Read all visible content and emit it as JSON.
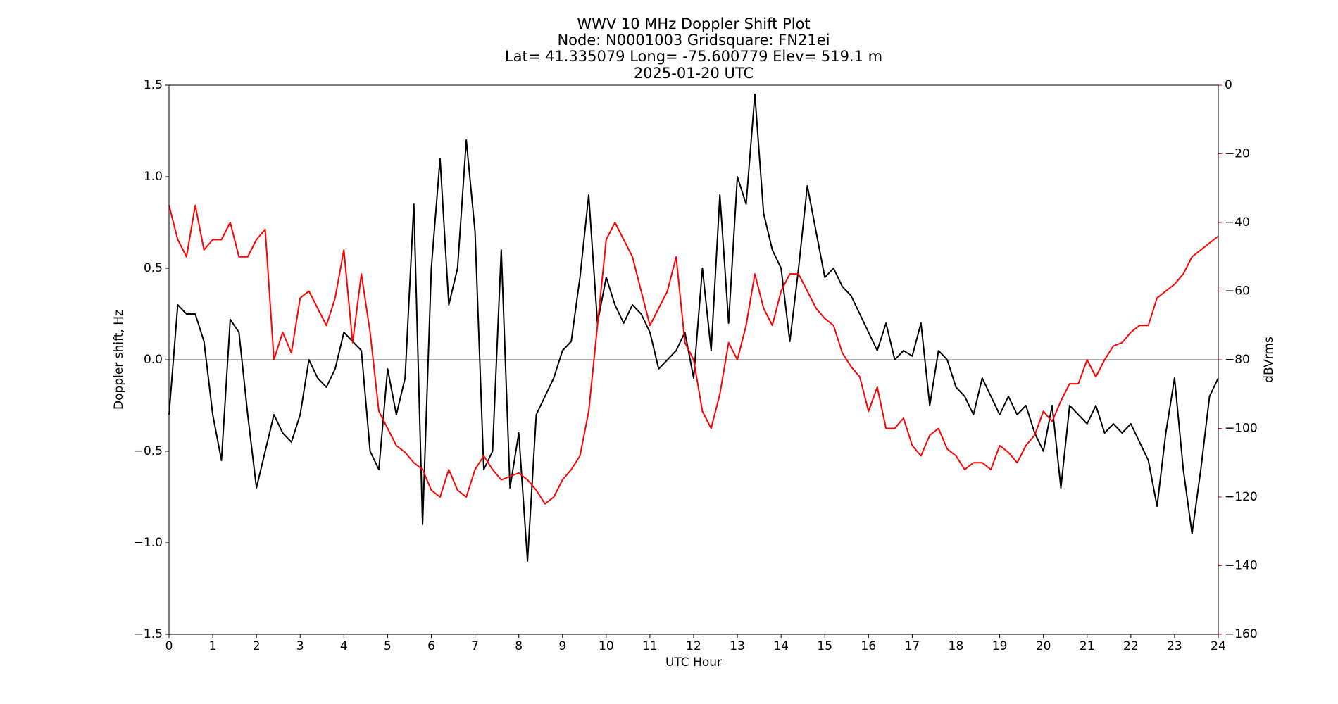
{
  "chart_data": {
    "type": "line",
    "title": "WWV 10 MHz Doppler Shift Plot",
    "subtitle": [
      "Node:  N0001003     Gridsquare:  FN21ei",
      "Lat= 41.335079    Long= -75.600779    Elev= 519.1 m",
      "2025-01-20  UTC"
    ],
    "x_label": "UTC Hour",
    "y_label": "Doppler shift, Hz",
    "y2_label": "dBVrms",
    "y2_color": "#ff0000",
    "xlim": [
      0,
      24
    ],
    "xticks": [
      0,
      1,
      2,
      3,
      4,
      5,
      6,
      7,
      8,
      9,
      10,
      11,
      12,
      13,
      14,
      15,
      16,
      17,
      18,
      19,
      20,
      21,
      22,
      23,
      24
    ],
    "ylim": [
      -1.5,
      1.5
    ],
    "yticks": [
      {
        "value": -1.5,
        "label": "−1.5"
      },
      {
        "value": -1,
        "label": "−1.0"
      },
      {
        "value": -0.5,
        "label": "−0.5"
      },
      {
        "value": 0,
        "label": "0.0"
      },
      0.5,
      {
        "value": 1,
        "label": "1.0"
      },
      1.5
    ],
    "y2lim": [
      -160,
      0
    ],
    "y2ticks": [
      {
        "value": -160,
        "label": "−160"
      },
      {
        "value": -140,
        "label": "−140"
      },
      {
        "value": -120,
        "label": "−120"
      },
      {
        "value": -100,
        "label": "−100"
      },
      {
        "value": -80,
        "label": "−80"
      },
      {
        "value": -60,
        "label": "−60"
      },
      {
        "value": -40,
        "label": "−40"
      },
      {
        "value": -20,
        "label": "−20"
      },
      0
    ],
    "reference_line": {
      "value": 0,
      "color": "#808080"
    },
    "x": [
      0,
      0.2,
      0.4,
      0.6,
      0.8,
      1,
      1.2,
      1.4,
      1.6,
      1.8,
      2,
      2.2,
      2.4,
      2.6,
      2.8,
      3,
      3.2,
      3.4,
      3.6,
      3.8,
      4,
      4.2,
      4.4,
      4.6,
      4.8,
      5,
      5.2,
      5.4,
      5.6,
      5.8,
      6,
      6.2,
      6.4,
      6.6,
      6.8,
      7,
      7.2,
      7.4,
      7.6,
      7.8,
      8,
      8.2,
      8.4,
      8.6,
      8.8,
      9,
      9.2,
      9.4,
      9.6,
      9.8,
      10,
      10.2,
      10.4,
      10.6,
      10.8,
      11,
      11.2,
      11.4,
      11.6,
      11.8,
      12,
      12.2,
      12.4,
      12.6,
      12.8,
      13,
      13.2,
      13.4,
      13.6,
      13.8,
      14,
      14.2,
      14.4,
      14.6,
      14.8,
      15,
      15.2,
      15.4,
      15.6,
      15.8,
      16,
      16.2,
      16.4,
      16.6,
      16.8,
      17,
      17.2,
      17.4,
      17.6,
      17.8,
      18,
      18.2,
      18.4,
      18.6,
      18.8,
      19,
      19.2,
      19.4,
      19.6,
      19.8,
      20,
      20.2,
      20.4,
      20.6,
      20.8,
      21,
      21.2,
      21.4,
      21.6,
      21.8,
      22,
      22.2,
      22.4,
      22.6,
      22.8,
      23,
      23.2,
      23.4,
      23.6,
      23.8,
      24
    ],
    "series": [
      {
        "color": "#000000",
        "values": [
          -0.3,
          0.3,
          0.25,
          0.25,
          0.1,
          -0.3,
          -0.55,
          0.22,
          0.15,
          -0.3,
          -0.7,
          -0.5,
          -0.3,
          -0.4,
          -0.45,
          -0.3,
          0,
          -0.1,
          -0.15,
          -0.05,
          0.15,
          0.1,
          0.05,
          -0.5,
          -0.6,
          -0.05,
          -0.3,
          -0.1,
          0.85,
          -0.9,
          0.5,
          1.1,
          0.3,
          0.5,
          1.2,
          0.7,
          -0.6,
          -0.5,
          0.6,
          -0.7,
          -0.4,
          -1.1,
          -0.3,
          -0.2,
          -0.1,
          0.05,
          0.1,
          0.45,
          0.9,
          0.2,
          0.45,
          0.3,
          0.2,
          0.3,
          0.25,
          0.15,
          -0.05,
          0,
          0.05,
          0.15,
          -0.1,
          0.5,
          0.05,
          0.9,
          0.2,
          1,
          0.85,
          1.45,
          0.8,
          0.6,
          0.5,
          0.1,
          0.5,
          0.95,
          0.7,
          0.45,
          0.5,
          0.4,
          0.35,
          0.25,
          0.15,
          0.05,
          0.2,
          0,
          0.05,
          0.02,
          0.2,
          -0.25,
          0.05,
          0,
          -0.15,
          -0.2,
          -0.3,
          -0.1,
          -0.2,
          -0.3,
          -0.2,
          -0.3,
          -0.25,
          -0.4,
          -0.5,
          -0.25,
          -0.7,
          -0.25,
          -0.3,
          -0.35,
          -0.25,
          -0.4,
          -0.35,
          -0.4,
          -0.35,
          -0.45,
          -0.55,
          -0.8,
          -0.4,
          -0.1,
          -0.6,
          -0.95,
          -0.6,
          -0.2,
          -0.1
        ]
      },
      {
        "color": "#ff0000",
        "axis": "y2",
        "values": [
          -35,
          -45,
          -50,
          -35,
          -48,
          -45,
          -45,
          -40,
          -50,
          -50,
          -45,
          -42,
          -80,
          -72,
          -78,
          -62,
          -60,
          -65,
          -70,
          -62,
          -48,
          -75,
          -55,
          -72,
          -95,
          -100,
          -105,
          -107,
          -110,
          -112,
          -118,
          -120,
          -112,
          -118,
          -120,
          -112,
          -108,
          -112,
          -115,
          -114,
          -113,
          -115,
          -118,
          -122,
          -120,
          -115,
          -112,
          -108,
          -95,
          -70,
          -45,
          -40,
          -45,
          -50,
          -60,
          -70,
          -65,
          -60,
          -50,
          -75,
          -80,
          -95,
          -100,
          -90,
          -75,
          -80,
          -70,
          -55,
          -65,
          -70,
          -60,
          -55,
          -55,
          -60,
          -65,
          -68,
          -70,
          -78,
          -82,
          -85,
          -95,
          -88,
          -100,
          -100,
          -97,
          -105,
          -108,
          -102,
          -100,
          -106,
          -108,
          -112,
          -110,
          -110,
          -112,
          -105,
          -107,
          -110,
          -105,
          -102,
          -95,
          -98,
          -92,
          -87,
          -87,
          -80,
          -85,
          -80,
          -76,
          -75,
          -72,
          -70,
          -70,
          -62,
          -60,
          -58,
          -55,
          -50,
          -48,
          -46,
          -44
        ]
      }
    ]
  }
}
